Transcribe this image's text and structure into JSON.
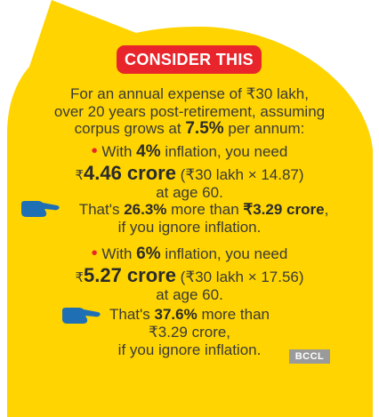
{
  "colors": {
    "bubble": "#ffd400",
    "accent": "#e8252b",
    "hand": "#1f6fb5",
    "text": "#3a3a3a"
  },
  "badge": "CONSIDER THIS",
  "intro": {
    "l1": "For an annual expense of ₹30 lakh,",
    "l2": "over 20 years post-retirement, assuming",
    "l3_a": "corpus grows at ",
    "l3_b": "7.5%",
    "l3_c": " per annum:"
  },
  "s1": {
    "bullet": "•",
    "a1": " With ",
    "pct": "4%",
    "a2": " inflation, you need",
    "rupee": "₹",
    "amount": "4.46 crore",
    "calc": " (₹30 lakh × 14.87)",
    "age": "at age 60.",
    "t1": "That's ",
    "t_pct": "26.3%",
    "t2": " more than ",
    "t_amt": "₹3.29 crore",
    "t3": ",",
    "ignore": "if you ignore inflation."
  },
  "s2": {
    "bullet": "•",
    "a1": " With ",
    "pct": "6%",
    "a2": " inflation, you need",
    "rupee": "₹",
    "amount": "5.27 crore",
    "calc": " (₹30 lakh × 17.56)",
    "age": "at age 60.",
    "t1": "That's ",
    "t_pct": "37.6%",
    "t2": " more than",
    "t_amt": "₹3.29 crore,",
    "ignore": "if you ignore inflation."
  },
  "credit": "BCCL",
  "icons": [
    "speech-bubble",
    "pointing-hand-icon"
  ]
}
